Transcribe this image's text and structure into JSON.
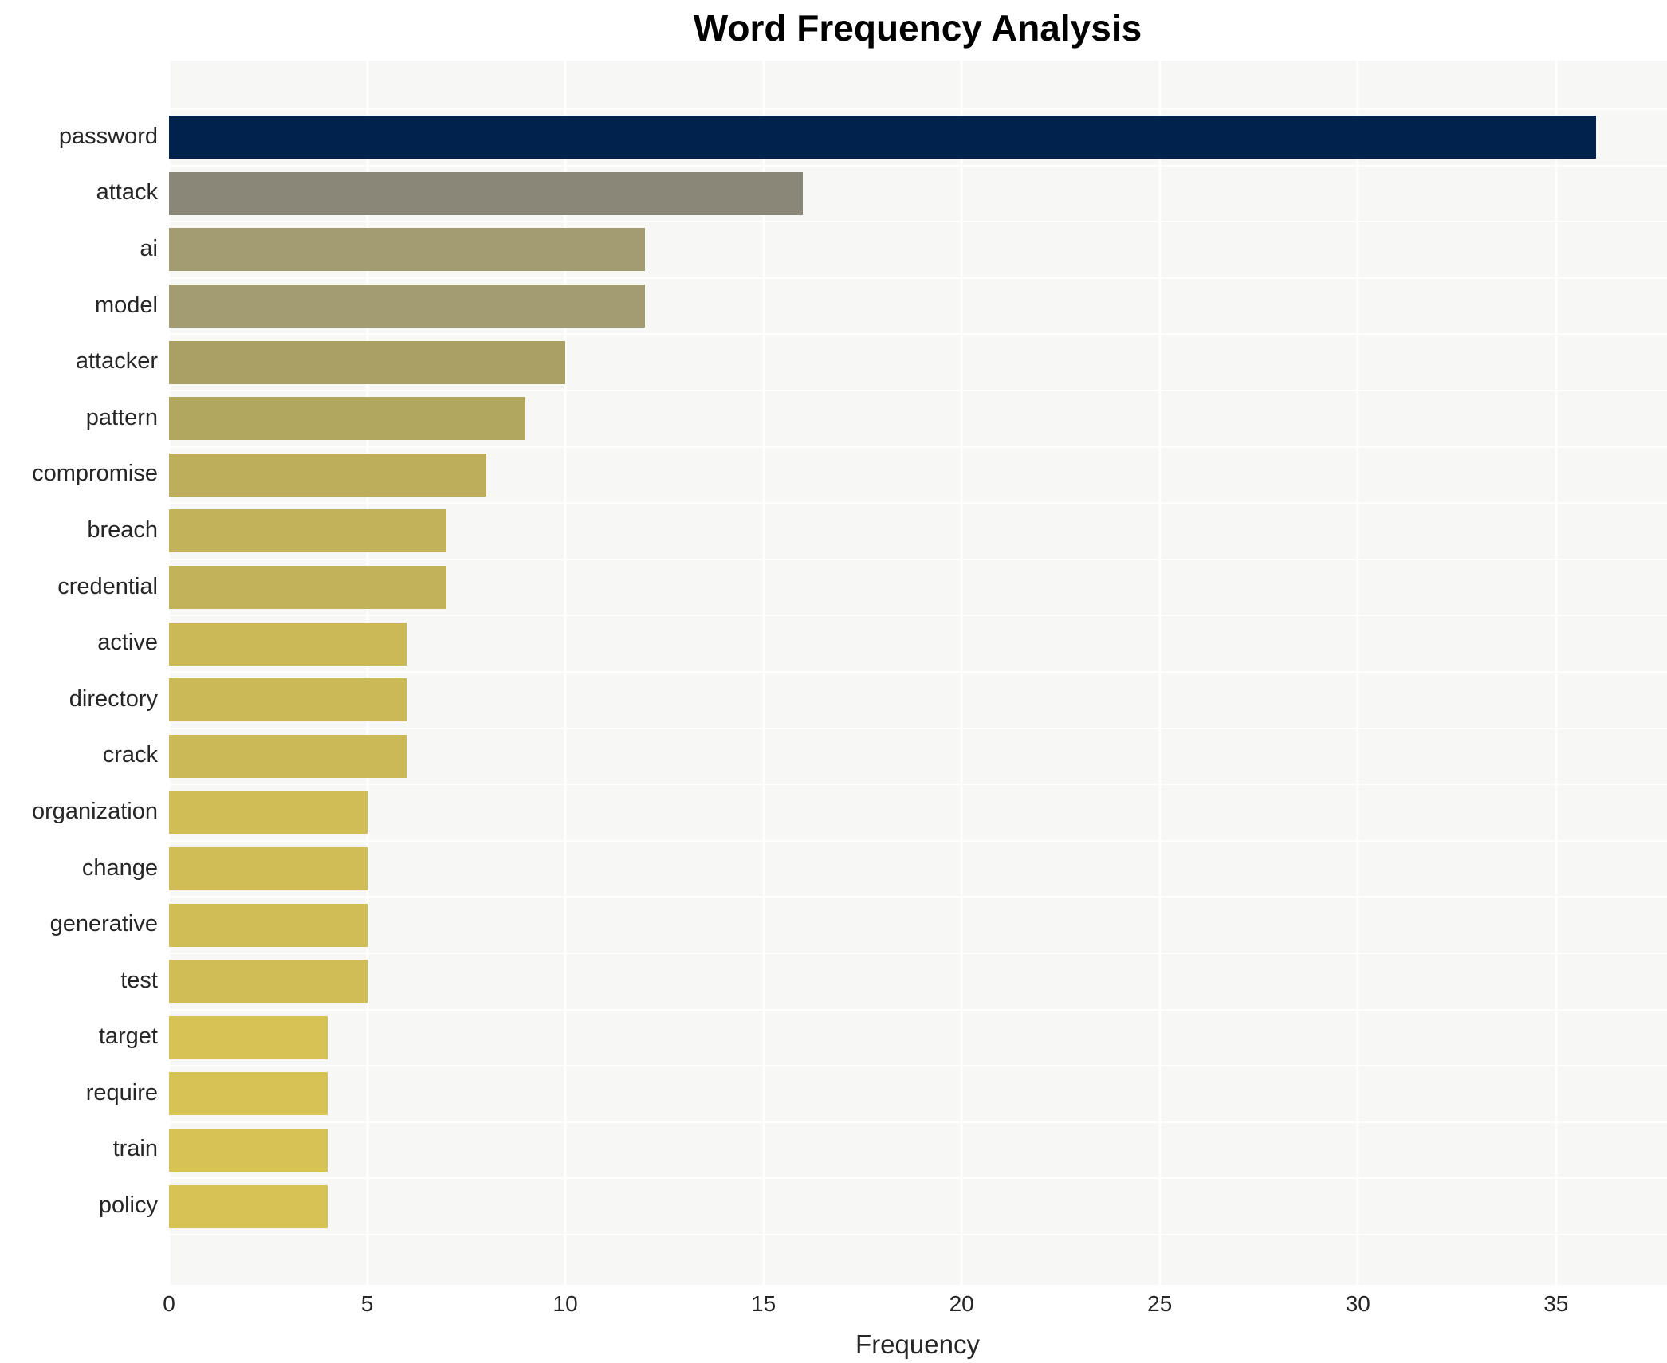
{
  "chart_data": {
    "type": "bar",
    "orientation": "horizontal",
    "title": "Word Frequency Analysis",
    "xlabel": "Frequency",
    "ylabel": "",
    "categories": [
      "password",
      "attack",
      "ai",
      "model",
      "attacker",
      "pattern",
      "compromise",
      "breach",
      "credential",
      "active",
      "directory",
      "crack",
      "organization",
      "change",
      "generative",
      "test",
      "target",
      "require",
      "train",
      "policy"
    ],
    "values": [
      36,
      16,
      12,
      12,
      10,
      9,
      8,
      7,
      7,
      6,
      6,
      6,
      5,
      5,
      5,
      5,
      4,
      4,
      4,
      4
    ],
    "bar_colors": [
      "#02224e",
      "#8a8779",
      "#a39c71",
      "#a39c71",
      "#aba064",
      "#b2a75f",
      "#bcae5a",
      "#c2b259",
      "#c2b259",
      "#cab956",
      "#cab956",
      "#cab956",
      "#d0bd55",
      "#d0bd55",
      "#d0bd55",
      "#d0bd55",
      "#d6c353",
      "#d6c353",
      "#d6c353",
      "#d6c353"
    ],
    "x_ticks": [
      0,
      5,
      10,
      15,
      20,
      25,
      30,
      35
    ],
    "xlim": [
      0,
      37.8
    ],
    "grid": true,
    "legend": "none",
    "plot_background": "#f7f7f6",
    "gridline_color": "#ffffff"
  }
}
